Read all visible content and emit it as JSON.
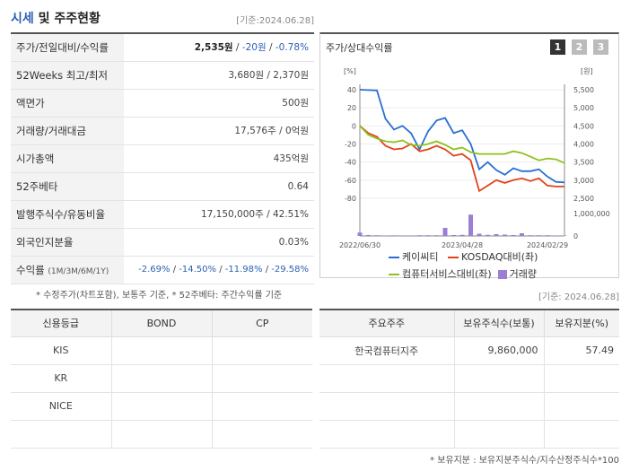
{
  "header": {
    "title_main": "시세",
    "title_rest": " 및 주주현황",
    "date": "[기준:2024.06.28]"
  },
  "stats": [
    {
      "label": "주가/전일대비/수익률",
      "price": "2,535원",
      "sep1": " / ",
      "change": "-20원",
      "sep2": " / ",
      "rate": "-0.78%"
    },
    {
      "label": "52Weeks 최고/최저",
      "value": "3,680원 / 2,370원"
    },
    {
      "label": "액면가",
      "value": "500원"
    },
    {
      "label": "거래량/거래대금",
      "value": "17,576주 / 0억원"
    },
    {
      "label": "시가총액",
      "value": "435억원"
    },
    {
      "label": "52주베타",
      "value": "0.64"
    },
    {
      "label": "발행주식수/유동비율",
      "value": "17,150,000주 / 42.51%"
    },
    {
      "label": "외국인지분율",
      "value": "0.03%"
    },
    {
      "label": "수익률",
      "label_small": "(1M/3M/6M/1Y)",
      "r1": "-2.69%",
      "r2": "-14.50%",
      "r3": "-11.98%",
      "r4": "-29.58%",
      "sep": "/ "
    }
  ],
  "stats_note": "* 수정주가(차트포함), 보통주 기준, * 52주베타: 주간수익률 기준",
  "chart": {
    "title": "주가/상대수익률",
    "tabs": [
      "1",
      "2",
      "3"
    ],
    "left_unit": "[%]",
    "right_unit": "[원]",
    "left_ticks": [
      "40",
      "20",
      "0",
      "-20",
      "-40",
      "-60",
      "-80"
    ],
    "right_ticks": [
      "5,500",
      "5,000",
      "4,500",
      "4,000",
      "3,500",
      "3,000",
      "2,500"
    ],
    "volume_tick_top": "1,000,000",
    "volume_tick_zero": "0",
    "x_ticks": [
      "2022/06/30",
      "2023/04/28",
      "2024/02/29"
    ],
    "legend": [
      "케이씨티",
      "KOSDAQ대비(좌)",
      "컴퓨터서비스대비(좌)",
      "거래량"
    ],
    "colors": {
      "price": "#2a6fd0",
      "kosdaq": "#e0441b",
      "sector": "#8ec21f",
      "volume": "#9b7fd4"
    }
  },
  "chart_data": {
    "type": "line",
    "x_labels": [
      "2022/06/30",
      "2023/04/28",
      "2024/02/29"
    ],
    "series": [
      {
        "name": "케이씨티",
        "axis": "right",
        "values": [
          5500,
          5490,
          5480,
          4700,
          4400,
          4500,
          4300,
          3850,
          4350,
          4650,
          4720,
          4300,
          4380,
          4000,
          3300,
          3500,
          3280,
          3150,
          3330,
          3250,
          3250,
          3300,
          3100,
          2950,
          2940
        ]
      },
      {
        "name": "KOSDAQ대비(좌)",
        "axis": "left",
        "values": [
          0,
          -8,
          -12,
          -22,
          -26,
          -25,
          -20,
          -28,
          -26,
          -22,
          -26,
          -33,
          -31,
          -38,
          -72,
          -66,
          -60,
          -63,
          -60,
          -58,
          -61,
          -58,
          -66,
          -67,
          -67
        ]
      },
      {
        "name": "컴퓨터서비스대비(좌)",
        "axis": "left",
        "values": [
          0,
          -10,
          -14,
          -17,
          -18,
          -16,
          -21,
          -22,
          -20,
          -17,
          -21,
          -26,
          -24,
          -29,
          -31,
          -31,
          -31,
          -31,
          -28,
          -30,
          -34,
          -38,
          -36,
          -37,
          -41
        ]
      },
      {
        "name": "거래량",
        "axis": "volume",
        "values": [
          150000,
          40000,
          30000,
          20000,
          25000,
          20000,
          20000,
          30000,
          30000,
          30000,
          360000,
          40000,
          50000,
          950000,
          100000,
          50000,
          80000,
          60000,
          40000,
          120000,
          30000,
          30000,
          30000,
          20000,
          20000
        ]
      }
    ],
    "ylim_left": [
      -80,
      40
    ],
    "ylim_right": [
      2500,
      5500
    ]
  },
  "credit": {
    "headers": [
      "신용등급",
      "BOND",
      "CP"
    ],
    "rows": [
      [
        "KIS",
        "",
        ""
      ],
      [
        "KR",
        "",
        ""
      ],
      [
        "NICE",
        "",
        ""
      ],
      [
        "",
        "",
        ""
      ]
    ]
  },
  "holders": {
    "date": "[기준: 2024.06.28]",
    "headers": [
      "주요주주",
      "보유주식수(보통)",
      "보유지분(%)"
    ],
    "rows": [
      [
        "한국컴퓨터지주",
        "9,860,000",
        "57.49"
      ],
      [
        "",
        "",
        ""
      ],
      [
        "",
        "",
        ""
      ],
      [
        "",
        "",
        ""
      ]
    ],
    "note": "* 보유지분 : 보유지분주식수/지수산정주식수*100"
  }
}
